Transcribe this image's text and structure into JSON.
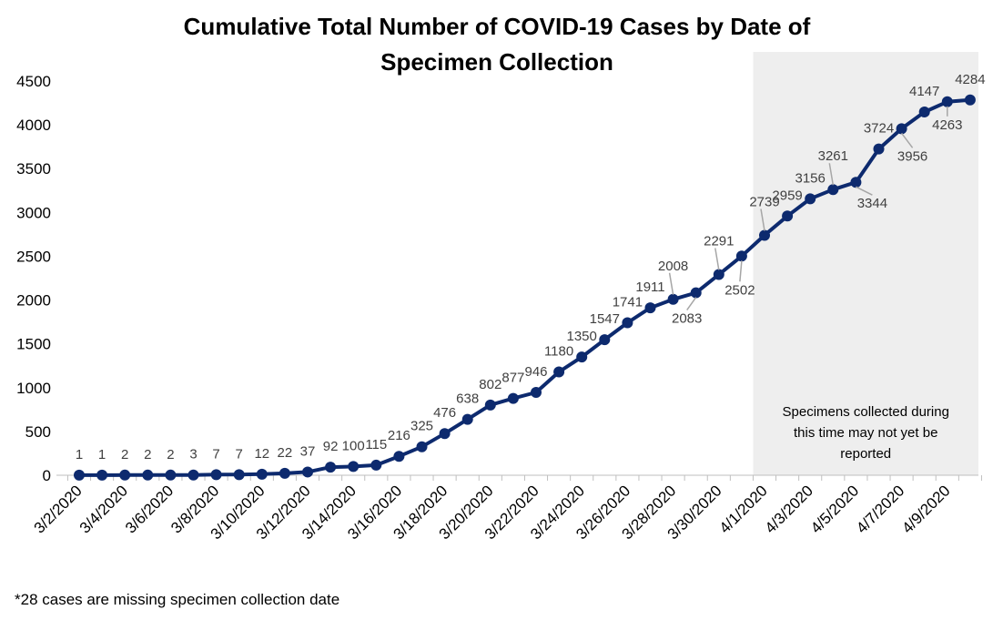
{
  "chart_data": {
    "type": "line",
    "title_lines": [
      "Cumulative Total Number of COVID-19 Cases by Date of",
      "Specimen Collection"
    ],
    "xlabel": "",
    "ylabel": "",
    "ylim": [
      0,
      4500
    ],
    "yticks": [
      "0",
      "500",
      "1000",
      "1500",
      "2000",
      "2500",
      "3000",
      "3500",
      "4000",
      "4500"
    ],
    "grid": false,
    "x_tick_labels": [
      "3/2/2020",
      "3/4/2020",
      "3/6/2020",
      "3/8/2020",
      "3/10/2020",
      "3/12/2020",
      "3/14/2020",
      "3/16/2020",
      "3/18/2020",
      "3/20/2020",
      "3/22/2020",
      "3/24/2020",
      "3/26/2020",
      "3/28/2020",
      "3/30/2020",
      "4/1/2020",
      "4/3/2020",
      "4/5/2020",
      "4/7/2020",
      "4/9/2020"
    ],
    "x": [
      "3/2/2020",
      "3/3/2020",
      "3/4/2020",
      "3/5/2020",
      "3/6/2020",
      "3/7/2020",
      "3/8/2020",
      "3/9/2020",
      "3/10/2020",
      "3/11/2020",
      "3/12/2020",
      "3/13/2020",
      "3/14/2020",
      "3/15/2020",
      "3/16/2020",
      "3/17/2020",
      "3/18/2020",
      "3/19/2020",
      "3/20/2020",
      "3/21/2020",
      "3/22/2020",
      "3/23/2020",
      "3/24/2020",
      "3/25/2020",
      "3/26/2020",
      "3/27/2020",
      "3/28/2020",
      "3/29/2020",
      "3/30/2020",
      "3/31/2020",
      "4/1/2020",
      "4/2/2020",
      "4/3/2020",
      "4/4/2020",
      "4/5/2020",
      "4/6/2020",
      "4/7/2020",
      "4/8/2020",
      "4/9/2020",
      "4/10/2020"
    ],
    "values": [
      1,
      1,
      2,
      2,
      2,
      3,
      7,
      7,
      12,
      22,
      37,
      92,
      100,
      115,
      216,
      325,
      476,
      638,
      802,
      877,
      946,
      1180,
      1350,
      1547,
      1741,
      1911,
      2008,
      2083,
      2291,
      2502,
      2739,
      2959,
      3156,
      3261,
      3344,
      3724,
      3956,
      4147,
      4263,
      4284
    ],
    "line_color": "#0d2a6e",
    "shaded_region": {
      "from": "4/1/2020",
      "to": "4/10/2020",
      "color": "#eeeeee",
      "annotation_lines": [
        "Specimens collected during",
        "this time may not yet be",
        "reported"
      ]
    }
  },
  "footnote": "*28 cases are missing specimen collection date"
}
